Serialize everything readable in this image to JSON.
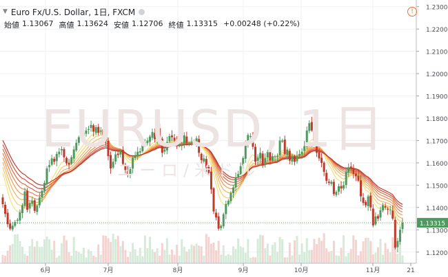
{
  "header": {
    "collapse_icon": "chevron-down-icon",
    "title": "Euro Fx/U.S. Dollar, 1日, FXCM",
    "status_dot_color": "#cfd3d8",
    "open_label": "始値",
    "open_value": "1.13067",
    "high_label": "高値",
    "high_value": "1.13624",
    "low_label": "安値",
    "low_value": "1.12706",
    "close_label": "終値",
    "close_value": "1.13315",
    "change_text": "+0.00248 (+0.22%)",
    "info_icon": "info-icon",
    "info_glyph": "!"
  },
  "watermark": {
    "line1": "EURUSD, 1日",
    "line2": "ユーロ/米ドル"
  },
  "colors": {
    "up": "#4e9a5e",
    "down": "#c0392b",
    "volume_up": "#d6ead9",
    "volume_down": "#f2d3d0",
    "ribbon_fast": "#f5e27a",
    "ribbon_slow": "#c0392b"
  },
  "chart_data": {
    "type": "candlestick",
    "symbol": "EURUSD",
    "interval": "1日",
    "y_ticks": [
      "1.23000",
      "1.22000",
      "1.21000",
      "1.20000",
      "1.19000",
      "1.18000",
      "1.17000",
      "1.16000",
      "1.15000",
      "1.14000",
      "1.13000",
      "1.12000"
    ],
    "ylim": [
      1.115,
      1.233
    ],
    "x_ticks": [
      "6月",
      "7月",
      "8月",
      "9月",
      "10月",
      "11月",
      "21"
    ],
    "last_price_label": "1.13315",
    "grid": true,
    "ribbon": {
      "count": 8,
      "description": "moving average ribbon"
    },
    "closes": [
      1.1415,
      1.1372,
      1.1325,
      1.1305,
      1.1318,
      1.1335,
      1.1345,
      1.1378,
      1.141,
      1.1472,
      1.139,
      1.142,
      1.143,
      1.1385,
      1.1408,
      1.1445,
      1.1475,
      1.151,
      1.1575,
      1.159,
      1.162,
      1.1605,
      1.164,
      1.165,
      1.1662,
      1.1625,
      1.1598,
      1.1592,
      1.1625,
      1.166,
      1.169,
      1.1715,
      1.172,
      1.1735,
      1.1745,
      1.1752,
      1.177,
      1.174,
      1.176,
      1.1735,
      1.1745,
      1.1725,
      1.17,
      1.163,
      1.1575,
      1.1605,
      1.1638,
      1.1635,
      1.1652,
      1.1595,
      1.1568,
      1.155,
      1.1572,
      1.1623,
      1.163,
      1.165,
      1.1652,
      1.1685,
      1.1693,
      1.17,
      1.1718,
      1.1738,
      1.1706,
      1.175,
      1.1712,
      1.1645,
      1.166,
      1.1694,
      1.172,
      1.1715,
      1.17,
      1.1682,
      1.1683,
      1.1682,
      1.1723,
      1.169,
      1.1688,
      1.1695,
      1.1689,
      1.171,
      1.1645,
      1.1612,
      1.162,
      1.1577,
      1.1555,
      1.1481,
      1.1382,
      1.1355,
      1.1305,
      1.1318,
      1.137,
      1.1415,
      1.143,
      1.1465,
      1.149,
      1.1535,
      1.155,
      1.1585,
      1.1622,
      1.168,
      1.1725,
      1.172,
      1.1672,
      1.1605,
      1.1625,
      1.1645,
      1.159,
      1.1621,
      1.165,
      1.161,
      1.163,
      1.163,
      1.1632,
      1.17,
      1.17,
      1.164,
      1.166,
      1.161,
      1.163,
      1.1605,
      1.163,
      1.164,
      1.165,
      1.1675,
      1.1745,
      1.1778,
      1.1745,
      1.17,
      1.1645,
      1.162,
      1.16,
      1.156,
      1.152,
      1.151,
      1.1515,
      1.146,
      1.147,
      1.1495,
      1.1485,
      1.15,
      1.156,
      1.158,
      1.1575,
      1.155,
      1.154,
      1.152,
      1.145,
      1.142,
      1.141,
      1.145,
      1.14,
      1.132,
      1.136,
      1.135,
      1.1388,
      1.141,
      1.14,
      1.139,
      1.139,
      1.135,
      1.122,
      1.125,
      1.13,
      1.1332
    ]
  }
}
